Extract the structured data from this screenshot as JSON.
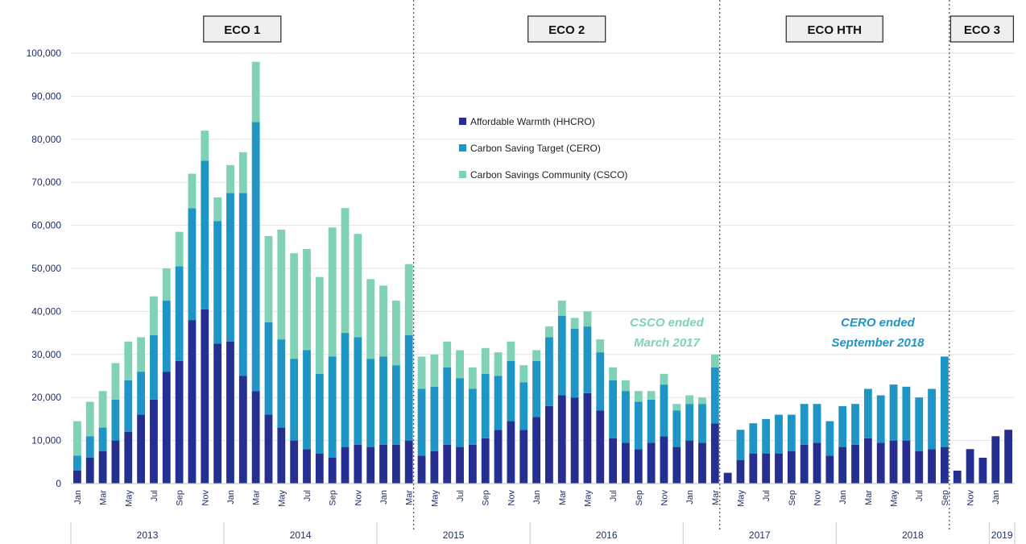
{
  "colors": {
    "hhcro": "#262f8f",
    "cero": "#1f95c5",
    "csco": "#7fd2b5",
    "axis_text": "#1f2d6b",
    "note_csco": "#7fd2b5",
    "note_cero": "#1f95c5"
  },
  "phases": [
    "ECO 1",
    "ECO 2",
    "ECO HTH",
    "ECO 3"
  ],
  "annotations": [
    {
      "id": "csco",
      "lines": [
        "CSCO ended",
        "March 2017"
      ]
    },
    {
      "id": "cero",
      "lines": [
        "CERO ended",
        "September 2018"
      ]
    }
  ],
  "chart_data": {
    "type": "bar",
    "stacked": true,
    "ylim": [
      0,
      100000
    ],
    "yticks": [
      "0",
      "10,000",
      "20,000",
      "30,000",
      "40,000",
      "50,000",
      "60,000",
      "70,000",
      "80,000",
      "90,000",
      "100,000"
    ],
    "grid": true,
    "legend_position": "top-center",
    "categories": [
      "Jan",
      "Feb",
      "Mar",
      "Apr",
      "May",
      "Jun",
      "Jul",
      "Aug",
      "Sep",
      "Oct",
      "Nov",
      "Dec",
      "Jan",
      "Feb",
      "Mar",
      "Apr",
      "May",
      "Jun",
      "Jul",
      "Aug",
      "Sep",
      "Oct",
      "Nov",
      "Dec",
      "Jan",
      "Feb",
      "Mar",
      "Apr",
      "May",
      "Jun",
      "Jul",
      "Aug",
      "Sep",
      "Oct",
      "Nov",
      "Dec",
      "Jan",
      "Feb",
      "Mar",
      "Apr",
      "May",
      "Jun",
      "Jul",
      "Aug",
      "Sep",
      "Oct",
      "Nov",
      "Dec",
      "Jan",
      "Feb",
      "Mar",
      "Apr",
      "May",
      "Jun",
      "Jul",
      "Aug",
      "Sep",
      "Oct",
      "Nov",
      "Dec",
      "Jan",
      "Feb",
      "Mar",
      "Apr",
      "May",
      "Jun",
      "Jul",
      "Aug",
      "Sep",
      "Oct",
      "Nov",
      "Dec",
      "Jan",
      "Feb"
    ],
    "shown_tick_labels": [
      "Jan",
      "Mar",
      "May",
      "Jul",
      "Sep",
      "Nov",
      "Jan",
      "Mar",
      "May",
      "Jul",
      "Sep",
      "Nov",
      "Jan",
      "Mar",
      "May",
      "Jul",
      "Sep",
      "Nov",
      "Jan",
      "Mar",
      "May",
      "Jul",
      "Sep",
      "Nov",
      "Jan",
      "Mar",
      "May",
      "Jul",
      "Sep",
      "Nov",
      "Jan",
      "Mar",
      "May",
      "Jul",
      "Sep",
      "Nov",
      "Jan"
    ],
    "years": [
      {
        "label": "2013",
        "count": 12
      },
      {
        "label": "2014",
        "count": 12
      },
      {
        "label": "2015",
        "count": 12
      },
      {
        "label": "2016",
        "count": 12
      },
      {
        "label": "2017",
        "count": 12
      },
      {
        "label": "2018",
        "count": 12
      },
      {
        "label": "2019",
        "count": 2
      }
    ],
    "phase_boundaries_after_index": [
      26,
      50,
      68
    ],
    "series": [
      {
        "name": "Affordable Warmth (HHCRO)",
        "values": [
          3000,
          6000,
          7500,
          10000,
          12000,
          16000,
          19500,
          26000,
          28500,
          38000,
          40500,
          32500,
          33000,
          25000,
          21500,
          16000,
          13000,
          10000,
          8000,
          7000,
          6000,
          8500,
          9000,
          8500,
          9000,
          9000,
          10000,
          6500,
          7500,
          9000,
          8500,
          9000,
          10500,
          12500,
          14500,
          12500,
          15500,
          18000,
          20500,
          20000,
          21000,
          17000,
          10500,
          9500,
          8000,
          9500,
          11000,
          8500,
          10000,
          9500,
          14000,
          2500,
          5500,
          7000,
          7000,
          7000,
          7500,
          9000,
          9500,
          6500,
          8500,
          9000,
          10500,
          9500,
          10000,
          10000,
          7500,
          8000,
          8500,
          3000,
          8000,
          6000,
          11000,
          12500
        ]
      },
      {
        "name": "Carbon Saving Target (CERO)",
        "values": [
          3500,
          5000,
          5500,
          9500,
          12000,
          10000,
          15000,
          16500,
          22000,
          26000,
          34500,
          28500,
          34500,
          42500,
          62500,
          21500,
          20500,
          19000,
          23000,
          18500,
          23500,
          26500,
          25000,
          20500,
          20500,
          18500,
          24500,
          15500,
          15000,
          18000,
          16000,
          13000,
          15000,
          12500,
          14000,
          11000,
          13000,
          16000,
          18500,
          16000,
          15500,
          13500,
          13500,
          12000,
          11000,
          10000,
          12000,
          8500,
          8500,
          9000,
          13000,
          0,
          7000,
          7000,
          8000,
          9000,
          8500,
          9500,
          9000,
          8000,
          9500,
          9500,
          11500,
          11000,
          13000,
          12500,
          12500,
          14000,
          21000,
          0,
          0,
          0,
          0,
          0
        ]
      },
      {
        "name": "Carbon Savings Community  (CSCO)",
        "values": [
          8000,
          8000,
          8500,
          8500,
          9000,
          8000,
          9000,
          7500,
          8000,
          8000,
          7000,
          5500,
          6500,
          9500,
          14000,
          20000,
          25500,
          24500,
          23500,
          22500,
          30000,
          29000,
          24000,
          18500,
          16500,
          15000,
          16500,
          7500,
          7500,
          6000,
          6500,
          5000,
          6000,
          5500,
          4500,
          4000,
          2500,
          2500,
          3500,
          2500,
          3500,
          3000,
          3000,
          2500,
          2500,
          2000,
          2500,
          1500,
          2000,
          1500,
          3000,
          0,
          0,
          0,
          0,
          0,
          0,
          0,
          0,
          0,
          0,
          0,
          0,
          0,
          0,
          0,
          0,
          0,
          0,
          0,
          0,
          0,
          0,
          0
        ]
      }
    ]
  }
}
